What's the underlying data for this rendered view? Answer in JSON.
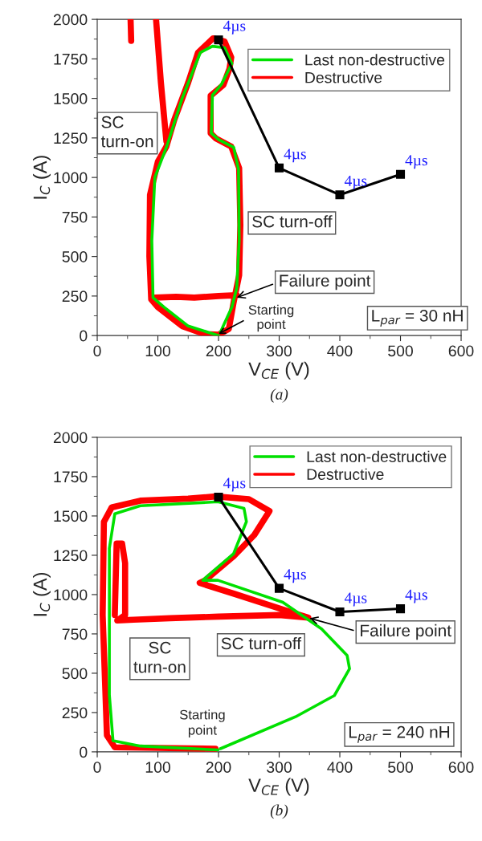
{
  "chart_data": [
    {
      "type": "line",
      "title": "(a)",
      "xlabel": "V$_{CE}$ (V)",
      "ylabel": "I$_{C}$ (A)",
      "xlim": [
        0,
        600
      ],
      "ylim": [
        0,
        2000
      ],
      "xticks": [
        0,
        100,
        200,
        300,
        400,
        500,
        600
      ],
      "yticks": [
        0,
        250,
        500,
        750,
        1000,
        1250,
        1500,
        1750,
        2000
      ],
      "grid": false,
      "legend": "top right",
      "series": [
        {
          "name": "Last non-destructive",
          "color": "#00e000",
          "x": [
            200,
            150,
            110,
            92,
            90,
            95,
            115,
            140,
            170,
            190,
            210,
            222,
            205,
            190,
            188,
            200,
            225,
            233,
            234,
            230,
            222,
            210,
            203
          ],
          "values": [
            0,
            60,
            180,
            240,
            600,
            1000,
            1200,
            1500,
            1790,
            1830,
            1820,
            1720,
            1590,
            1520,
            1280,
            1240,
            1190,
            1050,
            600,
            300,
            180,
            80,
            20
          ]
        },
        {
          "name": "Destructive",
          "color": "#ff0000",
          "x": [
            178,
            140,
            100,
            89,
            86,
            87,
            100,
            114,
            127,
            150,
            166,
            191,
            210,
            221,
            218,
            208,
            187,
            187,
            196,
            221,
            234,
            236,
            234,
            225,
            217,
            200,
            186,
            null,
            95,
            130,
            160,
            200,
            230,
            null,
            97,
            105,
            114,
            null,
            55,
            56
          ],
          "values": [
            8,
            60,
            180,
            229,
            500,
            890,
            1100,
            1195,
            1364,
            1600,
            1788,
            1880,
            1860,
            1760,
            1686,
            1585,
            1517,
            1280,
            1246,
            1195,
            1059,
            700,
            381,
            212,
            42,
            5,
            8,
            null,
            240,
            245,
            240,
            250,
            255,
            null,
            2000,
            1600,
            1229,
            null,
            2000,
            1864
          ]
        },
        {
          "color": "#000000",
          "marker": "square",
          "x": [
            200,
            300,
            400,
            500
          ],
          "values": [
            1870,
            1060,
            890,
            1020
          ]
        }
      ],
      "annotations": [
        {
          "text": "4µs",
          "x": 200,
          "y": 1870
        },
        {
          "text": "4µs",
          "x": 300,
          "y": 1060
        },
        {
          "text": "4µs",
          "x": 400,
          "y": 890
        },
        {
          "text": "4µs",
          "x": 500,
          "y": 1020
        },
        "SC\nturn-on",
        "SC turn-off",
        {
          "text": "Failure point",
          "x": 230,
          "y": 240
        },
        {
          "text": "Starting\npoint",
          "x": 200,
          "y": 10
        },
        "L$_{par}$ = 30 nH"
      ]
    },
    {
      "type": "line",
      "title": "(b)",
      "xlabel": "V$_{CE}$ (V)",
      "ylabel": "I$_{C}$ (A)",
      "xlim": [
        0,
        600
      ],
      "ylim": [
        0,
        2000
      ],
      "xticks": [
        0,
        100,
        200,
        300,
        400,
        500,
        600
      ],
      "yticks": [
        0,
        250,
        500,
        750,
        1000,
        1250,
        1500,
        1750,
        2000
      ],
      "grid": false,
      "legend": "top right",
      "series": [
        {
          "name": "Last non-destructive",
          "color": "#00e000",
          "x": [
            203,
            327,
            391,
            416,
            412,
            370,
            306,
            199,
            174,
            225,
            246,
            242,
            199,
            71,
            29,
            20,
            20,
            26,
            71,
            199
          ],
          "values": [
            20,
            223,
            358,
            528,
            613,
            782,
            951,
            1091,
            1091,
            1261,
            1464,
            1548,
            1590,
            1565,
            1514,
            1294,
            362,
            71,
            37,
            12
          ]
        },
        {
          "name": "Destructive",
          "color": "#ff0000",
          "x": [
            195,
            100,
            29,
            16,
            9,
            11,
            24,
            71,
            150,
            195,
            250,
            284,
            259,
            225,
            178,
            169,
            225,
            293,
            348,
            300,
            200,
            120,
            60,
            33,
            46,
            46,
            41,
            32,
            29
          ],
          "values": [
            20,
            25,
            29,
            105,
            870,
            1462,
            1555,
            1597,
            1610,
            1624,
            1607,
            1531,
            1379,
            1244,
            1091,
            1074,
            1006,
            921,
            853,
            870,
            860,
            850,
            840,
            836,
            870,
            1200,
            1324,
            1324,
            870
          ]
        },
        {
          "color": "#000000",
          "marker": "square",
          "x": [
            200,
            300,
            400,
            500
          ],
          "values": [
            1620,
            1040,
            890,
            910
          ]
        }
      ],
      "annotations": [
        {
          "text": "4µs",
          "x": 200,
          "y": 1620
        },
        {
          "text": "4µs",
          "x": 300,
          "y": 1040
        },
        {
          "text": "4µs",
          "x": 400,
          "y": 890
        },
        {
          "text": "4µs",
          "x": 500,
          "y": 910
        },
        "SC\nturn-on",
        "SC turn-off",
        {
          "text": "Failure point",
          "x": 350,
          "y": 850
        },
        "Starting\npoint",
        "L$_{par}$ = 240 nH"
      ]
    }
  ]
}
